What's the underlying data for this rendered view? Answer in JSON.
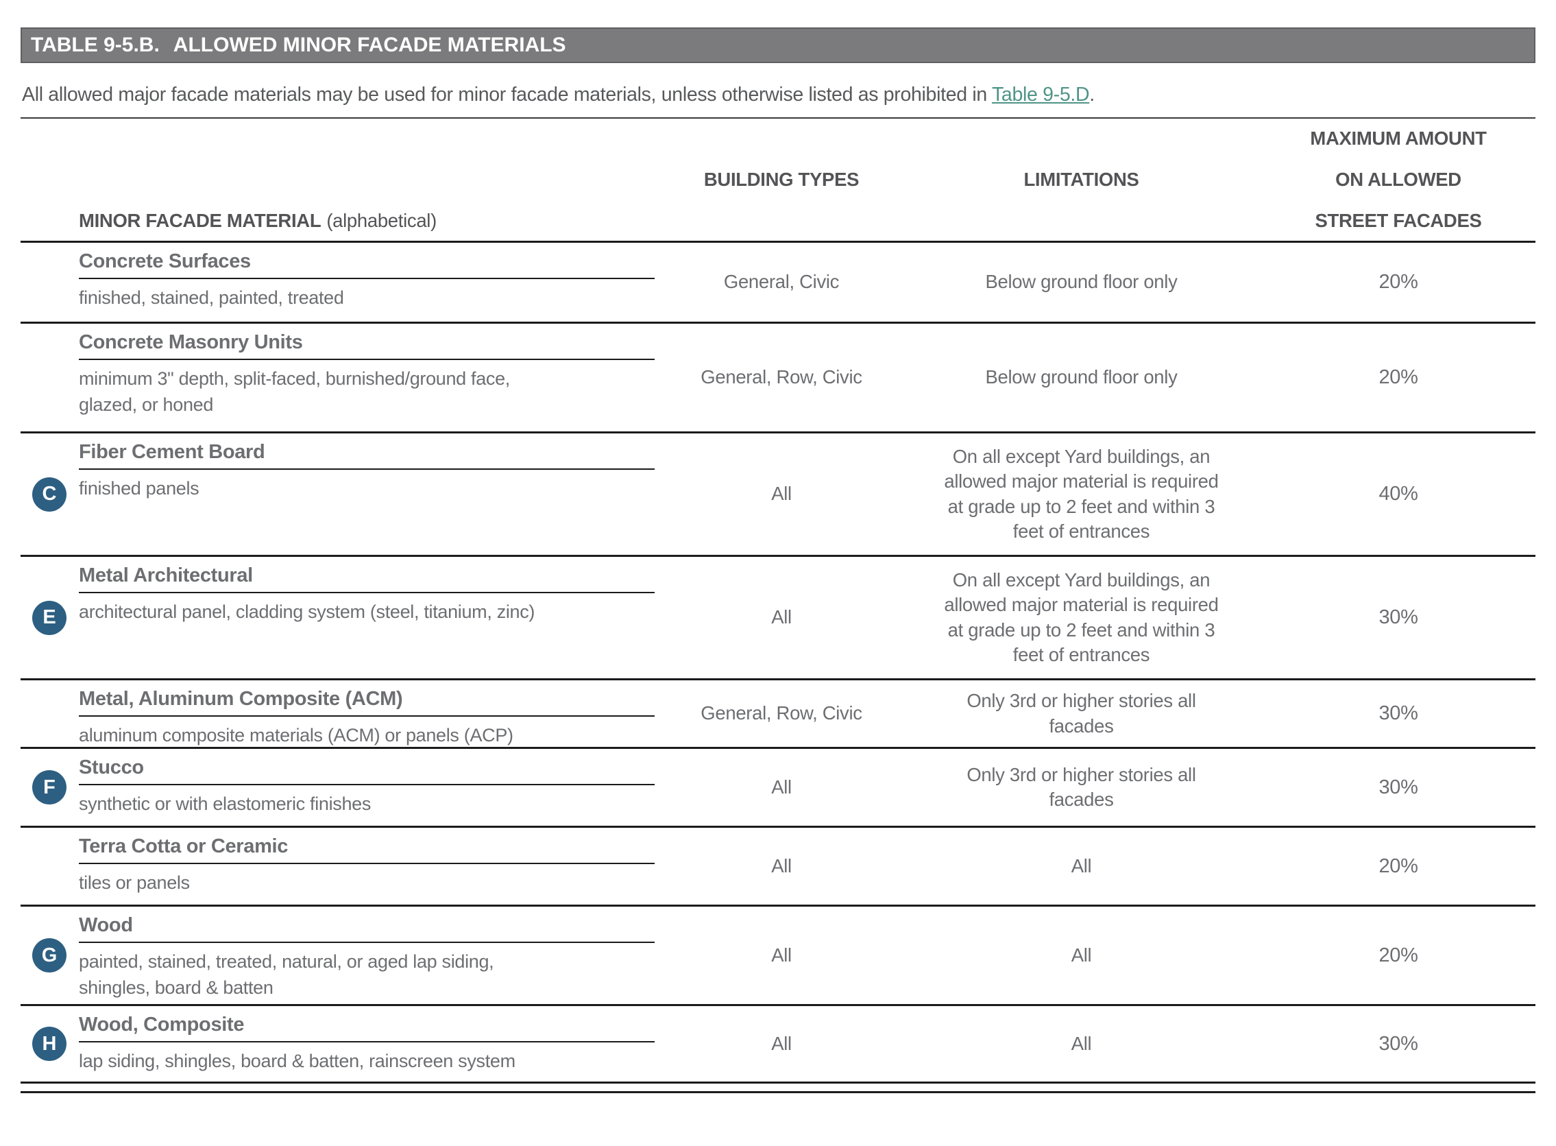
{
  "header": {
    "table_number": "TABLE 9-5.B.",
    "table_title": "ALLOWED MINOR FACADE MATERIALS"
  },
  "intro": {
    "text_before": "All allowed major facade materials may be used for minor facade materials, unless otherwise listed as prohibited in ",
    "link_text": "Table 9-5.D",
    "text_after": "."
  },
  "columns": {
    "material_label": "MINOR FACADE MATERIAL",
    "material_note": "(alphabetical)",
    "building_types": "BUILDING TYPES",
    "limitations": "LIMITATIONS",
    "max_amount": [
      "MAXIMUM AMOUNT",
      "ON ALLOWED",
      "STREET FACADES"
    ]
  },
  "rows": [
    {
      "badge": "",
      "name": "Concrete Surfaces",
      "desc": "finished, stained, painted, treated",
      "building_types": "General, Civic",
      "limitations": "Below ground floor only",
      "max_amount": "20%"
    },
    {
      "badge": "",
      "name": "Concrete Masonry Units",
      "desc": [
        "minimum 3\" depth, split-faced, burnished/ground face,",
        "glazed, or honed"
      ],
      "building_types": "General, Row, Civic",
      "limitations": "Below ground floor only",
      "max_amount": "20%"
    },
    {
      "badge": "C",
      "name": "Fiber Cement Board",
      "desc": "finished panels",
      "building_types": "All",
      "limitations": [
        "On all except Yard buildings, an",
        "allowed major material is required",
        "at grade up to 2 feet and within 3",
        "feet of entrances"
      ],
      "max_amount": "40%"
    },
    {
      "badge": "E",
      "name": "Metal Architectural",
      "desc": "architectural panel, cladding system (steel, titanium, zinc)",
      "building_types": "All",
      "limitations": [
        "On all except Yard buildings, an",
        "allowed major material is required",
        "at grade up to 2 feet and within 3",
        "feet of entrances"
      ],
      "max_amount": "30%"
    },
    {
      "badge": "",
      "name": "Metal, Aluminum Composite (ACM)",
      "desc": "aluminum composite materials (ACM) or panels (ACP)",
      "building_types": "General, Row, Civic",
      "limitations": [
        "Only 3rd or higher stories all",
        "facades"
      ],
      "max_amount": "30%"
    },
    {
      "badge": "F",
      "name": "Stucco",
      "desc": "synthetic or with elastomeric finishes",
      "building_types": "All",
      "limitations": [
        "Only 3rd or higher stories all",
        "facades"
      ],
      "max_amount": "30%"
    },
    {
      "badge": "",
      "name": "Terra Cotta or Ceramic",
      "desc": "tiles or panels",
      "building_types": "All",
      "limitations": "All",
      "max_amount": "20%"
    },
    {
      "badge": "G",
      "name": "Wood",
      "desc": [
        "painted, stained, treated, natural, or aged lap siding,",
        "shingles, board & batten"
      ],
      "building_types": "All",
      "limitations": "All",
      "max_amount": "20%"
    },
    {
      "badge": "H",
      "name": "Wood, Composite",
      "desc": "lap siding, shingles, board & batten, rainscreen system",
      "building_types": "All",
      "limitations": "All",
      "max_amount": "30%"
    }
  ],
  "colors": {
    "title_bar_bg": "#7b7b7d",
    "title_text": "#ffffff",
    "body_text": "#6d6e71",
    "header_text": "#545457",
    "link_teal": "#4f9488",
    "badge_blue": "#2d5f82",
    "rule_dark": "#1b1b1d"
  }
}
